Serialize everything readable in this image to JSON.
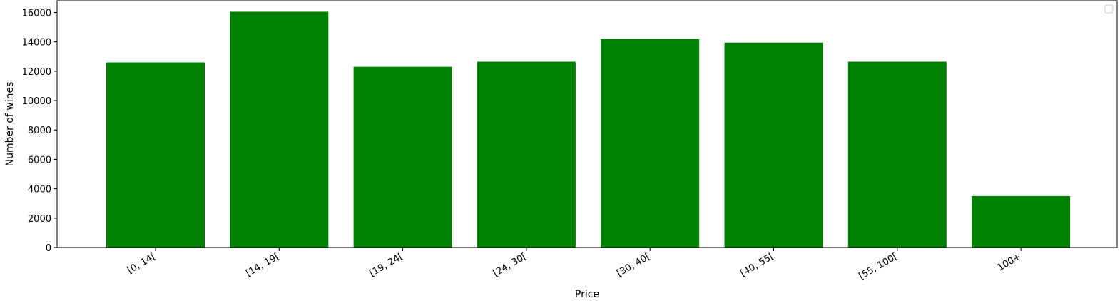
{
  "chart_data": {
    "type": "bar",
    "title": "",
    "xlabel": "Price",
    "ylabel": "Number of wines",
    "categories": [
      "[0, 14[",
      "[14, 19[",
      "[19, 24[",
      "[24, 30[",
      "[30, 40[",
      "[40, 55[",
      "[55, 100[",
      "100+"
    ],
    "values": [
      12600,
      16050,
      12300,
      12650,
      14200,
      13950,
      12650,
      3500
    ],
    "ylim": [
      0,
      16800
    ],
    "yticks": [
      0,
      2000,
      4000,
      6000,
      8000,
      10000,
      12000,
      14000,
      16000
    ],
    "bar_color": "#008000",
    "grid": false,
    "legend": {
      "placement": "top-right",
      "entries": []
    }
  }
}
